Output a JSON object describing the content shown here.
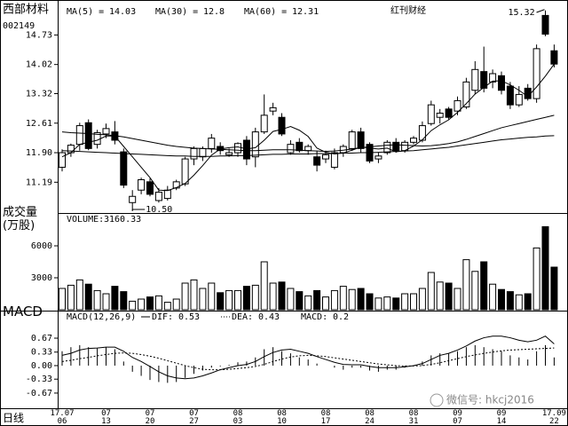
{
  "title": "西部材料",
  "code": "002149",
  "source": "红刊财经",
  "period": "日线",
  "watermark": "微信号: hkcj2016",
  "chart_data": [
    {
      "type": "candlestick",
      "categories": [
        "17.07\n06",
        null,
        null,
        null,
        null,
        "07\n13",
        null,
        null,
        null,
        null,
        "07\n20",
        null,
        null,
        null,
        null,
        "07\n27",
        null,
        null,
        null,
        null,
        "08\n03",
        null,
        null,
        null,
        null,
        "08\n10",
        null,
        null,
        null,
        null,
        "08\n17",
        null,
        null,
        null,
        null,
        "08\n24",
        null,
        null,
        null,
        null,
        "08\n31",
        null,
        null,
        null,
        null,
        "09\n07",
        null,
        null,
        null,
        null,
        "09\n14",
        null,
        null,
        null,
        null,
        null,
        "17.09\n22"
      ],
      "open": [
        11.55,
        11.9,
        12.1,
        12.62,
        12.1,
        12.35,
        12.4,
        11.92,
        10.7,
        11.0,
        11.2,
        10.75,
        10.8,
        11.05,
        11.15,
        11.75,
        11.8,
        12.0,
        12.05,
        11.85,
        11.9,
        12.2,
        11.8,
        12.4,
        12.9,
        12.75,
        11.9,
        12.15,
        11.95,
        11.8,
        11.75,
        11.55,
        11.9,
        12.0,
        12.4,
        12.1,
        11.75,
        11.9,
        12.15,
        11.95,
        12.15,
        12.2,
        12.6,
        12.75,
        12.95,
        12.9,
        13.0,
        13.4,
        13.85,
        13.6,
        13.75,
        13.5,
        13.05,
        13.45,
        13.2,
        15.2,
        14.35
      ],
      "high": [
        11.98,
        12.12,
        12.62,
        12.7,
        12.45,
        12.6,
        12.66,
        12.0,
        11.0,
        11.3,
        11.28,
        11.05,
        11.1,
        11.25,
        11.8,
        12.05,
        12.05,
        12.35,
        12.15,
        12.0,
        12.15,
        12.3,
        12.5,
        13.3,
        13.1,
        12.85,
        12.2,
        12.25,
        12.1,
        11.95,
        11.95,
        12.0,
        12.1,
        12.45,
        12.5,
        12.15,
        11.9,
        12.2,
        12.25,
        12.2,
        12.3,
        12.65,
        13.15,
        12.95,
        13.0,
        13.25,
        13.7,
        14.1,
        14.45,
        13.9,
        13.85,
        13.6,
        13.5,
        13.55,
        14.5,
        15.32,
        14.5
      ],
      "low": [
        11.45,
        11.8,
        11.95,
        11.96,
        12.0,
        12.25,
        12.1,
        11.05,
        10.5,
        10.9,
        10.85,
        10.7,
        10.75,
        11.0,
        11.1,
        11.6,
        11.7,
        11.9,
        11.85,
        11.8,
        11.8,
        11.6,
        11.55,
        12.35,
        12.8,
        12.3,
        11.85,
        11.9,
        11.85,
        11.45,
        11.65,
        11.5,
        11.8,
        11.95,
        11.9,
        11.65,
        11.65,
        11.85,
        11.9,
        11.9,
        12.1,
        12.15,
        12.55,
        12.6,
        12.7,
        12.8,
        12.95,
        13.3,
        13.35,
        13.45,
        13.3,
        12.95,
        13.0,
        13.15,
        13.1,
        14.7,
        13.95
      ],
      "close": [
        11.9,
        12.08,
        12.55,
        12.0,
        12.38,
        12.48,
        12.2,
        11.12,
        10.85,
        11.25,
        10.9,
        10.95,
        11.0,
        11.2,
        11.75,
        12.0,
        12.0,
        12.25,
        11.95,
        11.9,
        12.12,
        11.75,
        12.4,
        12.8,
        12.98,
        12.35,
        12.1,
        11.95,
        12.05,
        11.6,
        11.85,
        11.9,
        12.05,
        12.4,
        12.0,
        11.7,
        11.82,
        12.15,
        11.95,
        12.15,
        12.25,
        12.55,
        13.05,
        12.85,
        12.75,
        13.15,
        13.6,
        13.9,
        13.45,
        13.8,
        13.4,
        13.05,
        13.3,
        13.2,
        14.4,
        14.75,
        14.03
      ],
      "series": [
        {
          "name": "MA(5) =",
          "color": "#000000",
          "values": [
            11.8,
            11.9,
            12.1,
            12.15,
            12.2,
            12.3,
            12.3,
            12.05,
            11.8,
            11.55,
            11.3,
            11.0,
            10.99,
            11.06,
            11.16,
            11.36,
            11.59,
            11.84,
            11.99,
            12.02,
            12.04,
            11.99,
            12.02,
            12.2,
            12.41,
            12.46,
            12.53,
            12.44,
            12.29,
            12.01,
            11.91,
            11.87,
            11.89,
            11.96,
            12.04,
            12.01,
            11.99,
            12.01,
            11.92,
            11.95,
            12.06,
            12.21,
            12.43,
            12.57,
            12.69,
            12.87,
            13.08,
            13.31,
            13.47,
            13.62,
            13.63,
            13.53,
            13.4,
            13.25,
            13.48,
            13.74,
            14.03
          ]
        },
        {
          "name": "MA(30) =",
          "color": "#000000",
          "values": [
            12.4,
            12.38,
            12.37,
            12.36,
            12.34,
            12.33,
            12.31,
            12.28,
            12.24,
            12.2,
            12.16,
            12.12,
            12.08,
            12.05,
            12.03,
            12.01,
            12.0,
            11.99,
            11.98,
            11.97,
            11.96,
            11.95,
            11.95,
            11.96,
            11.97,
            11.97,
            11.97,
            11.96,
            11.95,
            11.94,
            11.93,
            11.94,
            11.96,
            11.99,
            12.02,
            12.04,
            12.06,
            12.08,
            12.09,
            12.08,
            12.07,
            12.06,
            12.07,
            12.09,
            12.12,
            12.16,
            12.22,
            12.29,
            12.36,
            12.43,
            12.5,
            12.55,
            12.6,
            12.65,
            12.7,
            12.75,
            12.8
          ]
        },
        {
          "name": "MA(60) =",
          "color": "#000000",
          "values": [
            11.95,
            11.94,
            11.93,
            11.92,
            11.91,
            11.9,
            11.89,
            11.88,
            11.87,
            11.86,
            11.85,
            11.84,
            11.83,
            11.82,
            11.82,
            11.81,
            11.81,
            11.81,
            11.82,
            11.82,
            11.83,
            11.83,
            11.84,
            11.85,
            11.86,
            11.86,
            11.87,
            11.87,
            11.87,
            11.88,
            11.88,
            11.88,
            11.89,
            11.89,
            11.9,
            11.9,
            11.91,
            11.92,
            11.93,
            11.94,
            11.95,
            11.97,
            11.99,
            12.01,
            12.03,
            12.06,
            12.09,
            12.12,
            12.15,
            12.18,
            12.21,
            12.23,
            12.25,
            12.27,
            12.28,
            12.3,
            12.31
          ]
        }
      ],
      "high_annotation": "15.32",
      "low_annotation": "10.50",
      "ylim": [
        10.45,
        15.4
      ],
      "yticks": [
        11.19,
        {
          "value": 11.9,
          "label": "11.90"
        },
        12.61,
        13.32,
        14.02,
        14.73
      ],
      "up_color": "#ffffff",
      "down_color": "#000000"
    },
    {
      "type": "bar",
      "title": "成交量\n(万股)",
      "header_label": "VOLUME:",
      "header_value": 3160.33,
      "values": [
        2000,
        2300,
        2800,
        2400,
        1800,
        1500,
        2200,
        1700,
        800,
        1000,
        1200,
        1300,
        700,
        1000,
        2500,
        2800,
        2000,
        2500,
        1600,
        1800,
        1800,
        2200,
        2300,
        4500,
        2500,
        2600,
        2000,
        1700,
        1300,
        1800,
        1200,
        1800,
        2200,
        1900,
        2000,
        1500,
        1100,
        1200,
        1100,
        1500,
        1500,
        2000,
        3500,
        2600,
        2500,
        2000,
        4700,
        3600,
        4500,
        2400,
        1900,
        1700,
        1400,
        1500,
        5800,
        7800,
        4000
      ],
      "ylim": [
        0,
        9000
      ],
      "yticks": [
        3000,
        6000
      ]
    },
    {
      "type": "macd",
      "title": "MACD",
      "header": "MACD(12,26,9)",
      "histogram_name": "MACD:",
      "histogram": [
        0.35,
        0.45,
        0.5,
        0.45,
        0.42,
        0.45,
        0.4,
        0.1,
        -0.15,
        -0.25,
        -0.35,
        -0.4,
        -0.42,
        -0.4,
        -0.3,
        -0.2,
        -0.12,
        -0.05,
        -0.02,
        0.02,
        0.08,
        0.1,
        0.2,
        0.4,
        0.45,
        0.35,
        0.3,
        0.2,
        0.15,
        0.05,
        0,
        -0.05,
        -0.1,
        -0.05,
        -0.05,
        -0.12,
        -0.15,
        -0.1,
        -0.1,
        -0.05,
        0,
        0.1,
        0.25,
        0.3,
        0.3,
        0.35,
        0.45,
        0.5,
        0.45,
        0.4,
        0.35,
        0.25,
        0.2,
        0.15,
        0.35,
        0.5,
        0.2
      ],
      "series": [
        {
          "name": "DIF:",
          "color": "#000000",
          "values": [
            0.25,
            0.3,
            0.38,
            0.42,
            0.43,
            0.45,
            0.45,
            0.35,
            0.2,
            0.1,
            -0.02,
            -0.15,
            -0.25,
            -0.3,
            -0.32,
            -0.3,
            -0.25,
            -0.18,
            -0.1,
            -0.05,
            0,
            0.03,
            0.1,
            0.22,
            0.32,
            0.38,
            0.4,
            0.35,
            0.3,
            0.22,
            0.15,
            0.08,
            0.03,
            0.02,
            0.02,
            -0.02,
            -0.05,
            -0.05,
            -0.05,
            -0.03,
            0,
            0.05,
            0.15,
            0.25,
            0.3,
            0.38,
            0.48,
            0.6,
            0.68,
            0.72,
            0.72,
            0.68,
            0.62,
            0.58,
            0.62,
            0.72,
            0.53
          ]
        },
        {
          "name": "DEA:",
          "color": "#000000",
          "dashed": true,
          "values": [
            0.1,
            0.13,
            0.17,
            0.2,
            0.24,
            0.27,
            0.3,
            0.31,
            0.3,
            0.27,
            0.23,
            0.18,
            0.12,
            0.06,
            0,
            -0.05,
            -0.09,
            -0.1,
            -0.1,
            -0.09,
            -0.07,
            -0.05,
            -0.02,
            0.03,
            0.1,
            0.16,
            0.21,
            0.24,
            0.25,
            0.24,
            0.22,
            0.19,
            0.16,
            0.13,
            0.1,
            0.07,
            0.04,
            0.02,
            0,
            -0.01,
            -0.01,
            0,
            0.03,
            0.07,
            0.12,
            0.17,
            0.22,
            0.26,
            0.3,
            0.33,
            0.36,
            0.38,
            0.39,
            0.4,
            0.41,
            0.42,
            0.43
          ]
        }
      ],
      "ylim": [
        -1.04,
        1.32
      ],
      "yticks": [
        -0.67,
        -0.33,
        {
          "value": 0,
          "label": "0.00"
        },
        0.33,
        0.67
      ]
    }
  ]
}
